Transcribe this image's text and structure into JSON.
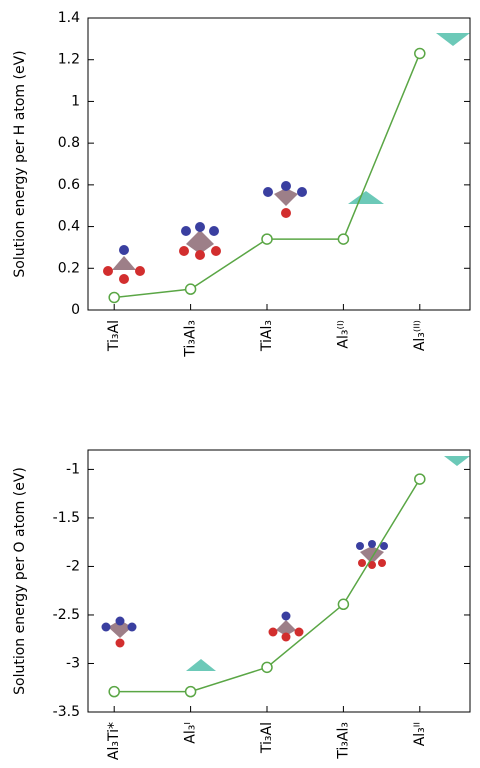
{
  "chart_data": [
    {
      "type": "line",
      "ylabel": "Solution energy per H atom (eV)",
      "categories": [
        "Ti₃Al",
        "Ti₃Al₃",
        "TiAl₃",
        "Al₃⁽ᴵ⁾",
        "Al₃⁽ᴵᴵ⁾"
      ],
      "values": [
        0.06,
        0.1,
        0.34,
        0.34,
        1.23
      ],
      "color": "#5aa645",
      "ylim": [
        0,
        1.4
      ],
      "yticks": [
        0,
        0.2,
        0.4,
        0.6,
        0.8,
        1,
        1.2,
        1.4
      ],
      "grid": false
    },
    {
      "type": "line",
      "ylabel": "Solution energy per O atom (eV)",
      "categories": [
        "Al₃Ti*",
        "Al₃ᴵ",
        "Ti₃Al",
        "Ti₃Al₃",
        "Al₃ᴵᴵ"
      ],
      "values": [
        -3.29,
        -3.29,
        -3.04,
        -2.39,
        -1.1
      ],
      "color": "#5aa645",
      "ylim": [
        -3.5,
        -0.8
      ],
      "yticks": [
        -3.5,
        -3,
        -2.5,
        -2,
        -1.5,
        -1
      ],
      "grid": false
    }
  ]
}
